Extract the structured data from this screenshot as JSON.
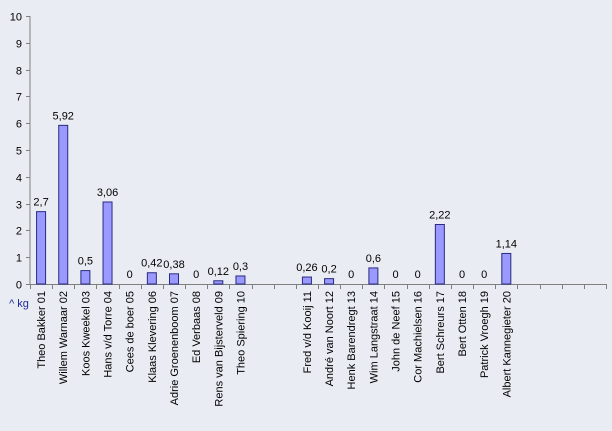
{
  "chart_data": {
    "type": "bar",
    "title": "",
    "xlabel": "",
    "ylabel": "",
    "unit_label": "^ kg",
    "ylim": [
      0,
      10
    ],
    "yticks": [
      0,
      1,
      2,
      3,
      4,
      5,
      6,
      7,
      8,
      9,
      10
    ],
    "grid": false,
    "legend": "none",
    "colors": {
      "bar_fill": "#9999ff",
      "bar_stroke": "#2a2a80",
      "plot_bg": "#e9ecf2",
      "axis": "#7f7f7f",
      "unit_text": "#1f2a9a"
    },
    "categories": [
      "Theo Bakker 01",
      "Willem Warnaar 02",
      "Koos Kweekel 03",
      "Hans v/d Torre 04",
      "Cees de boer 05",
      "Klaas Klevering 06",
      "Adrie Groenenboom 07",
      "Ed Verbaas 08",
      "Rens van Bijsterveld 09",
      "Theo Spiering 10",
      "",
      "",
      "Fred v/d Kooij 11",
      "André van Noort 12",
      "Henk Barendregt 13",
      "Wim Langstraat 14",
      "John de Neef 15",
      "Cor Machielsen 16",
      "Bert Schreurs 17",
      "Bert Otten 18",
      "Patrick Vroegh 19",
      "Albert Kannegieter 20",
      "",
      "",
      "",
      ""
    ],
    "values": [
      2.7,
      5.92,
      0.5,
      3.06,
      0,
      0.42,
      0.38,
      0,
      0.12,
      0.3,
      null,
      null,
      0.26,
      0.2,
      0,
      0.6,
      0,
      0,
      2.22,
      0,
      0,
      1.14,
      null,
      null,
      null,
      null
    ],
    "data_labels": [
      "2,7",
      "5,92",
      "0,5",
      "3,06",
      "0",
      "0,42",
      "0,38",
      "0",
      "0,12",
      "0,3",
      "",
      "",
      "0,26",
      "0,2",
      "0",
      "0,6",
      "0",
      "0",
      "2,22",
      "0",
      "0",
      "1,14",
      "",
      "",
      "",
      ""
    ]
  }
}
